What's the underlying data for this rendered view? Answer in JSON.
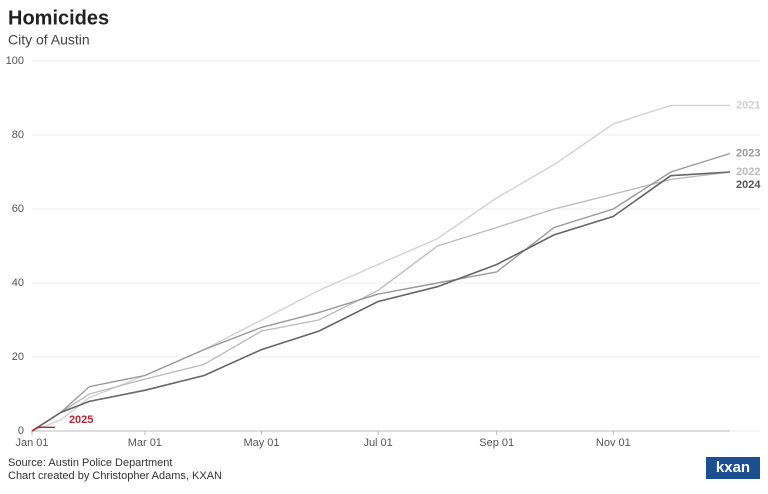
{
  "chart_data": {
    "type": "line",
    "title": "Homicides",
    "subtitle": "City of Austin",
    "source": "Source: Austin Police Department",
    "credit": "Chart created by Christopher Adams, KXAN",
    "logo": "kxan",
    "xlim": [
      0,
      365
    ],
    "xticks": [
      {
        "value": 0,
        "label": "Jan 01"
      },
      {
        "value": 59,
        "label": "Mar 01"
      },
      {
        "value": 120,
        "label": "May 01"
      },
      {
        "value": 181,
        "label": "Jul 01"
      },
      {
        "value": 243,
        "label": "Sep 01"
      },
      {
        "value": 304,
        "label": "Nov 01"
      }
    ],
    "ylim": [
      0,
      100
    ],
    "yticks": [
      0,
      20,
      40,
      60,
      80,
      100
    ],
    "grid": true,
    "series": [
      {
        "name": "2021",
        "color": "#d2d2d2",
        "x": [
          0,
          15,
          30,
          59,
          90,
          120,
          150,
          181,
          212,
          243,
          273,
          304,
          334,
          365
        ],
        "values": [
          0,
          3,
          9,
          15,
          22,
          30,
          38,
          45,
          52,
          63,
          72,
          83,
          88,
          88
        ]
      },
      {
        "name": "2022",
        "color": "#bdbdbd",
        "x": [
          0,
          15,
          30,
          59,
          90,
          120,
          150,
          181,
          212,
          243,
          273,
          304,
          334,
          365
        ],
        "values": [
          0,
          5,
          10,
          14,
          18,
          27,
          30,
          38,
          50,
          55,
          60,
          64,
          68,
          70
        ]
      },
      {
        "name": "2023",
        "color": "#999999",
        "x": [
          0,
          15,
          30,
          59,
          90,
          120,
          150,
          181,
          212,
          243,
          273,
          304,
          334,
          365
        ],
        "values": [
          0,
          5,
          12,
          15,
          22,
          28,
          32,
          37,
          40,
          43,
          55,
          60,
          70,
          75
        ]
      },
      {
        "name": "2024",
        "color": "#666666",
        "x": [
          0,
          15,
          30,
          59,
          90,
          120,
          150,
          181,
          212,
          243,
          273,
          304,
          334,
          365
        ],
        "values": [
          0,
          5,
          8,
          11,
          15,
          22,
          27,
          35,
          39,
          45,
          53,
          58,
          69,
          70
        ]
      },
      {
        "name": "2025",
        "color": "#b5272d",
        "x": [
          0,
          3,
          12
        ],
        "values": [
          0,
          1,
          1
        ]
      }
    ]
  }
}
